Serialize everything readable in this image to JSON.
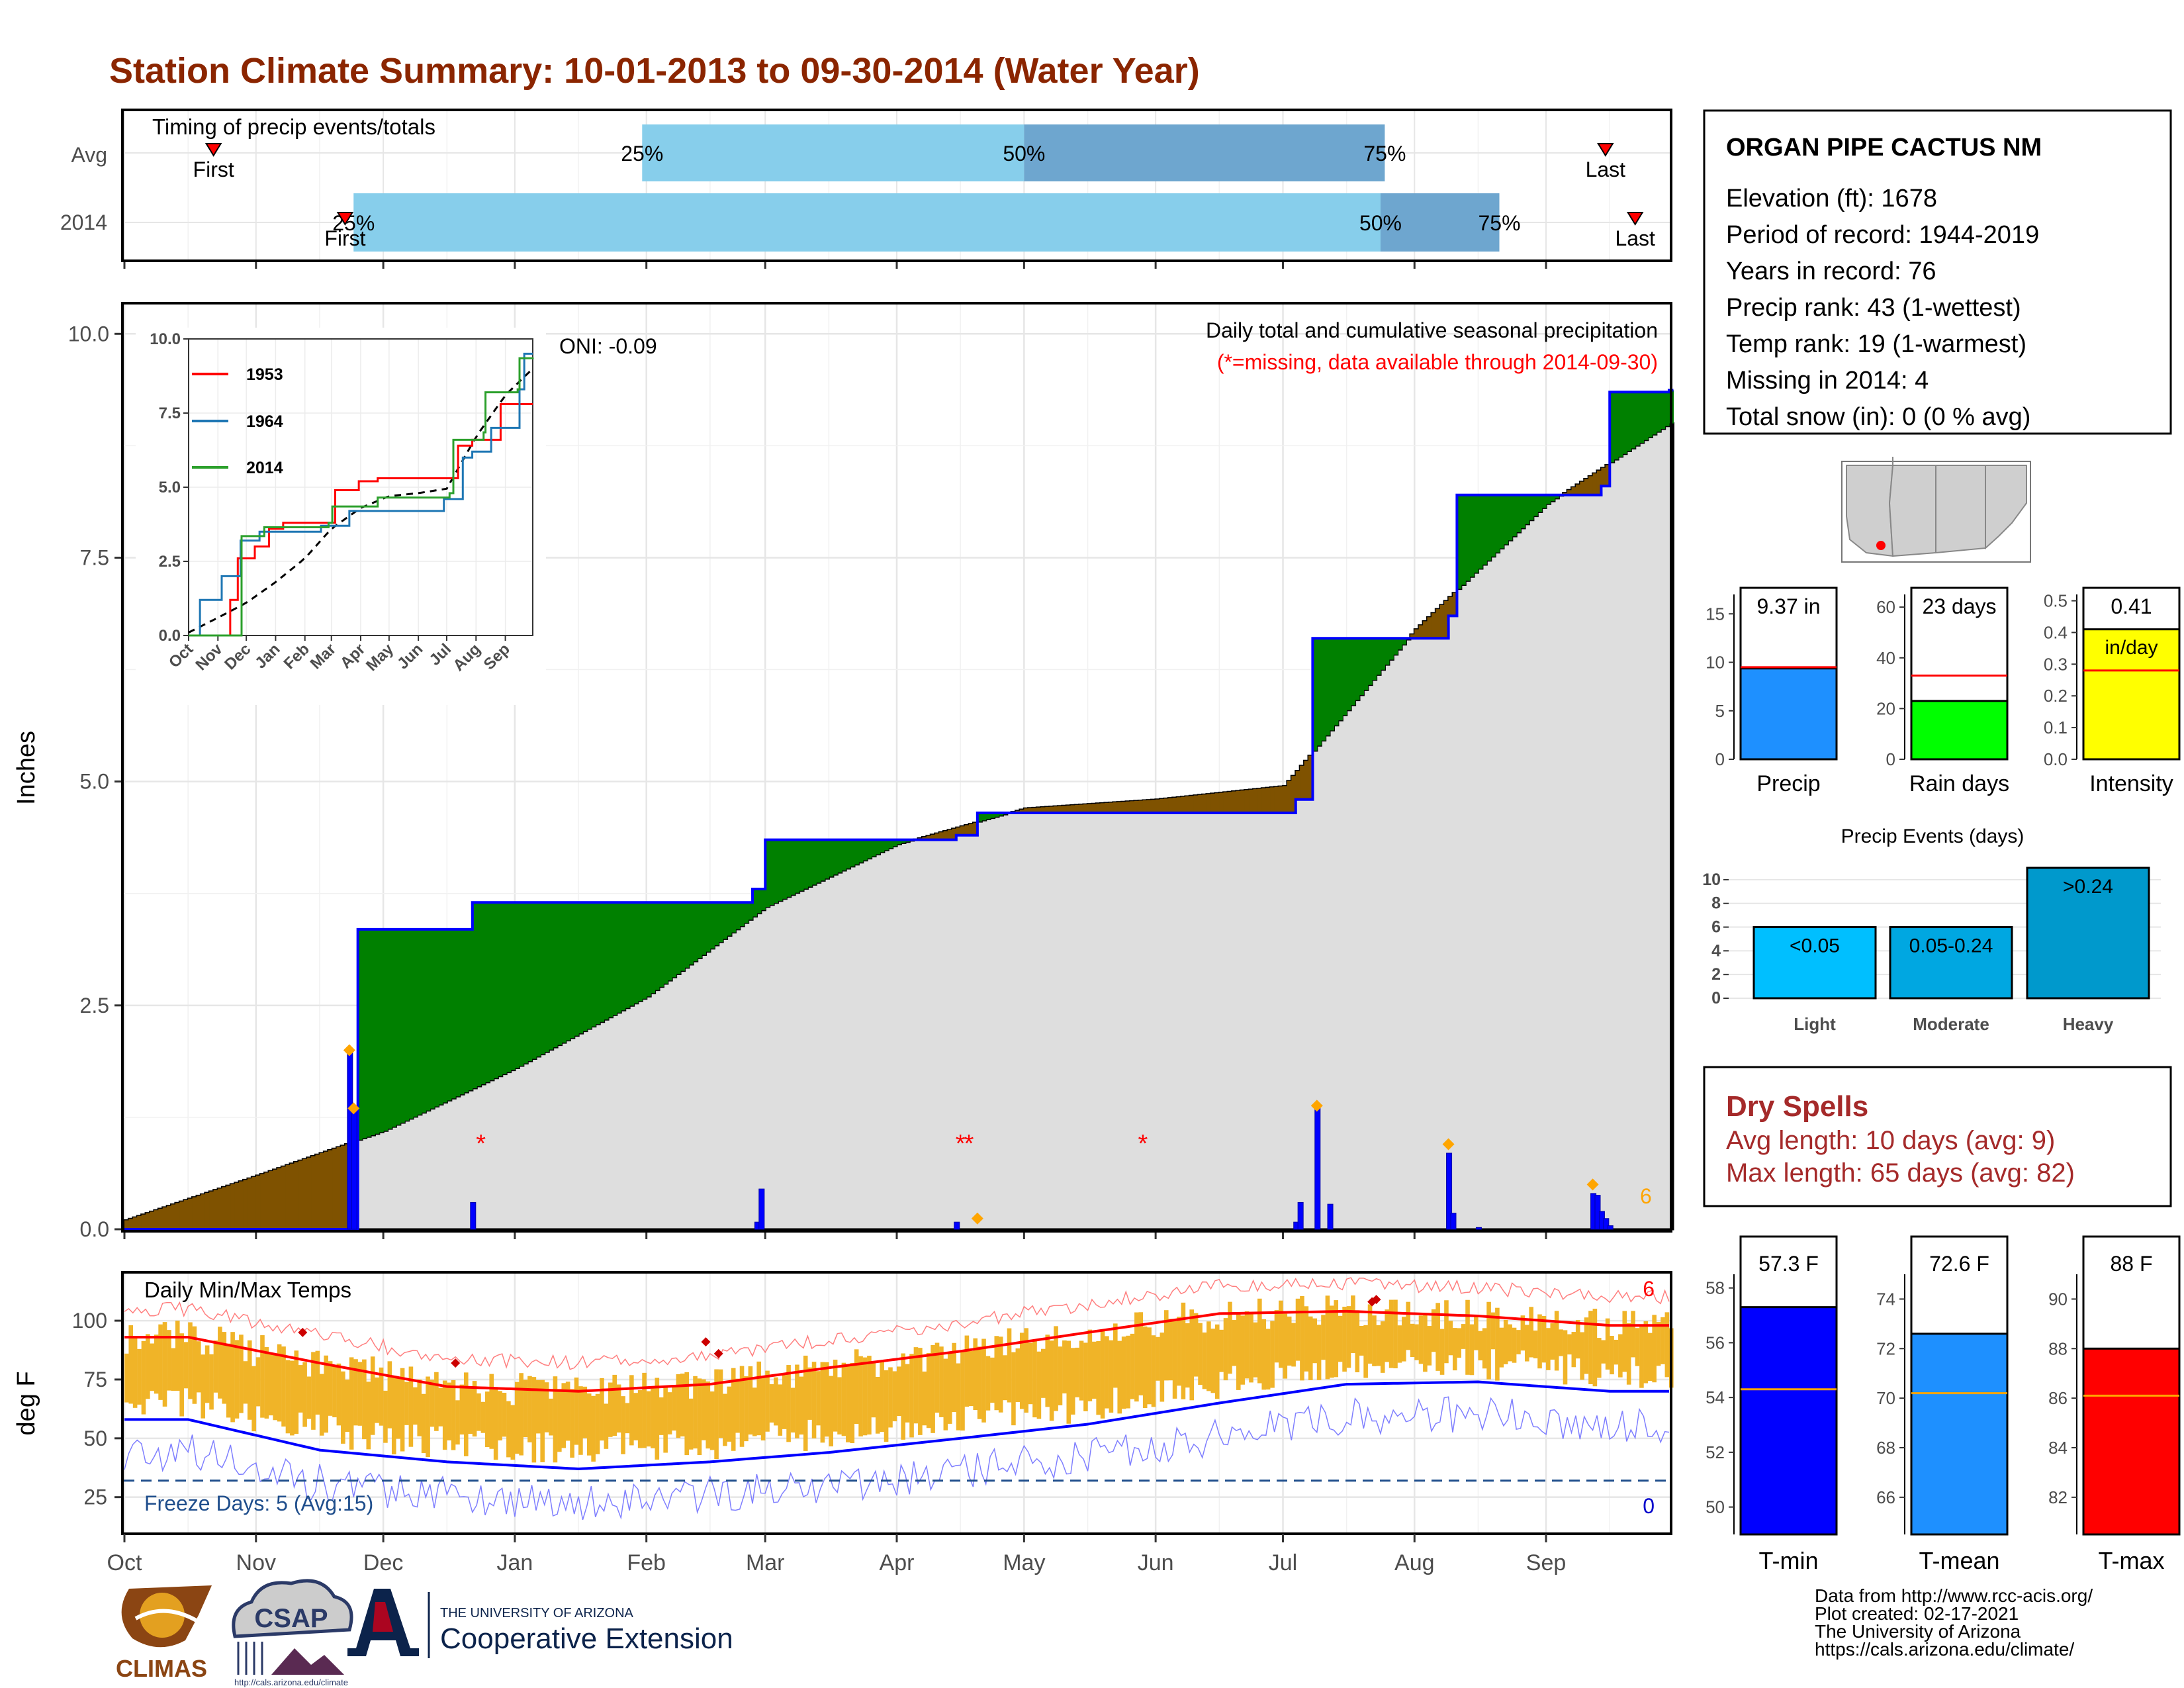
{
  "title": "Station Climate Summary: 10-01-2013 to 09-30-2014 (Water Year)",
  "colors": {
    "title": "#8b2500",
    "cum_fill": "#dedede",
    "surplus": "#008000",
    "deficit": "#7f5200",
    "precip_line": "#0000ff",
    "temp_bar": "#f0b428",
    "tmax": "#ff0000",
    "tmin": "#0000ff"
  },
  "timing": {
    "label": "Timing of precip events/totals",
    "rows": [
      "Avg",
      "2014"
    ],
    "first_label": "First",
    "last_label": "Last",
    "pct_labels": [
      "25%",
      "50%",
      "75%"
    ]
  },
  "station": {
    "name": "ORGAN PIPE CACTUS NM",
    "lines": [
      "Elevation (ft): 1678",
      "Period of record: 1944-2019",
      "Years in record: 76",
      "Precip rank: 43 (1-wettest)",
      "Temp rank: 19 (1-warmest)",
      "Missing in 2014: 4",
      "Total snow (in): 0 (0 % avg)"
    ]
  },
  "main": {
    "ylabel": "Inches",
    "heading": "Daily total and cumulative seasonal precipitation",
    "missing_note": "(*=missing, data available through 2014-09-30)",
    "oni": "ONI: -0.09",
    "extreme_count": "6",
    "yticks": [
      "0.0",
      "2.5",
      "5.0",
      "7.5",
      "10.0"
    ]
  },
  "inset": {
    "yticks": [
      "0.0",
      "2.5",
      "5.0",
      "7.5",
      "10.0"
    ],
    "xticks": [
      "Oct",
      "Nov",
      "Dec",
      "Jan",
      "Feb",
      "Mar",
      "Apr",
      "May",
      "Jun",
      "Jul",
      "Aug",
      "Sep"
    ]
  },
  "temp": {
    "label": "Daily Min/Max Temps",
    "ylabel": "deg F",
    "freeze": "Freeze Days: 5 (Avg:15)",
    "yticks": [
      "25",
      "50",
      "75",
      "100"
    ],
    "count_hot": "6",
    "count_cold": "0"
  },
  "months": [
    "Oct",
    "Nov",
    "Dec",
    "Jan",
    "Feb",
    "Mar",
    "Apr",
    "May",
    "Jun",
    "Jul",
    "Aug",
    "Sep"
  ],
  "mini_bars": [
    {
      "value_label": "9.37 in",
      "name": "Precip",
      "ticks": [
        "0",
        "5",
        "10",
        "15"
      ]
    },
    {
      "value_label": "23 days",
      "name": "Rain days",
      "ticks": [
        "0",
        "20",
        "40",
        "60"
      ]
    },
    {
      "value_label": "0.41",
      "unit": "in/day",
      "name": "Intensity",
      "ticks": [
        "0.0",
        "0.1",
        "0.2",
        "0.3",
        "0.4",
        "0.5"
      ]
    }
  ],
  "events": {
    "title": "Precip Events (days)",
    "ticks": [
      "0",
      "2",
      "4",
      "6",
      "8",
      "10"
    ]
  },
  "dry_spells": {
    "title": "Dry Spells",
    "avg": "Avg length: 10 days (avg: 9)",
    "max": "Max length: 65 days (avg: 82)"
  },
  "temp_bars": [
    {
      "value_label": "57.3 F",
      "name": "T-min",
      "ticks": [
        "50",
        "52",
        "54",
        "56",
        "58"
      ]
    },
    {
      "value_label": "72.6 F",
      "name": "T-mean",
      "ticks": [
        "66",
        "68",
        "70",
        "72",
        "74"
      ]
    },
    {
      "value_label": "88 F",
      "name": "T-max",
      "ticks": [
        "82",
        "84",
        "86",
        "88",
        "90"
      ]
    }
  ],
  "footer": [
    "Data from http://www.rcc-acis.org/",
    "Plot created: 02-17-2021",
    "The University of Arizona",
    "https://cals.arizona.edu/climate/"
  ],
  "logos": {
    "climas": "CLIMAS",
    "csap": "CSAP",
    "csap_url": "http://cals.arizona.edu/climate",
    "ua_small": "THE UNIVERSITY OF ARIZONA",
    "ua_big": "Cooperative Extension"
  },
  "chart_data": [
    {
      "type": "bar",
      "title": "Timing of precip events/totals",
      "categories": [
        "Avg",
        "2014"
      ],
      "series": [
        {
          "name": "Avg",
          "values": {
            "first": "2013-10-22",
            "p25": "2014-01-31",
            "p50": "2014-05-01",
            "p75": "2014-07-25",
            "last": "2014-09-15"
          }
        },
        {
          "name": "2014",
          "values": {
            "first": "2013-11-22",
            "p25": "2013-11-24",
            "p50": "2014-07-24",
            "p75": "2014-08-21",
            "last": "2014-09-22"
          }
        }
      ]
    },
    {
      "type": "area",
      "title": "Daily total and cumulative seasonal precipitation",
      "ylabel": "Inches",
      "ylim": [
        0,
        10
      ],
      "series": [
        {
          "name": "2014",
          "x": [
            "2013-10-01",
            "2013-11-24",
            "2013-11-25",
            "2013-12-22",
            "2014-02-26",
            "2014-03-01",
            "2014-04-15",
            "2014-04-20",
            "2014-07-04",
            "2014-07-08",
            "2014-08-09",
            "2014-08-11",
            "2014-09-14",
            "2014-09-16",
            "2014-09-30"
          ],
          "values": [
            0,
            0,
            3.35,
            3.65,
            3.8,
            4.35,
            4.4,
            4.65,
            4.8,
            6.6,
            6.85,
            8.2,
            8.3,
            9.35,
            9.37
          ]
        },
        {
          "name": "Average",
          "x": [
            "2013-10-01",
            "2013-11-01",
            "2013-12-01",
            "2014-01-01",
            "2014-02-01",
            "2014-03-01",
            "2014-04-01",
            "2014-05-01",
            "2014-06-01",
            "2014-07-01",
            "2014-08-01",
            "2014-09-01",
            "2014-09-30"
          ],
          "values": [
            0.1,
            0.6,
            1.1,
            1.8,
            2.6,
            3.6,
            4.3,
            4.7,
            4.8,
            4.95,
            6.7,
            8.1,
            9.0
          ]
        }
      ],
      "daily": {
        "x": [
          "2013-11-23",
          "2013-11-24",
          "2013-12-22",
          "2014-02-27",
          "2014-02-28",
          "2014-04-15",
          "2014-07-04",
          "2014-07-05",
          "2014-07-09",
          "2014-07-12",
          "2014-08-09",
          "2014-08-10",
          "2014-08-16",
          "2014-09-12",
          "2014-09-13",
          "2014-09-14",
          "2014-09-15",
          "2014-09-16"
        ],
        "values": [
          2.0,
          1.35,
          0.3,
          0.08,
          0.45,
          0.08,
          0.08,
          0.3,
          1.35,
          0.28,
          0.85,
          0.18,
          0.02,
          0.4,
          0.38,
          0.2,
          0.12,
          0.04
        ]
      },
      "missing": [
        "2013-12-24",
        "2014-04-16",
        "2014-04-18",
        "2014-05-29"
      ]
    },
    {
      "type": "line",
      "title": "Daily Min/Max Temps",
      "ylabel": "deg F",
      "ylim": [
        10,
        120
      ],
      "series": [
        {
          "name": "Avg max",
          "x": [
            "Oct",
            "Nov",
            "Dec",
            "Jan",
            "Feb",
            "Mar",
            "Apr",
            "May",
            "Jun",
            "Jul",
            "Aug",
            "Sep"
          ],
          "values": [
            93,
            82,
            72,
            70,
            73,
            80,
            87,
            95,
            103,
            104,
            102,
            98
          ]
        },
        {
          "name": "Avg min",
          "x": [
            "Oct",
            "Nov",
            "Dec",
            "Jan",
            "Feb",
            "Mar",
            "Apr",
            "May",
            "Jun",
            "Jul",
            "Aug",
            "Sep"
          ],
          "values": [
            58,
            45,
            40,
            37,
            40,
            44,
            50,
            56,
            65,
            73,
            74,
            70
          ]
        }
      ],
      "freeze_line": 32
    },
    {
      "type": "bar",
      "categories": [
        "Precip",
        "Rain days",
        "Intensity"
      ],
      "series": [
        {
          "name": "2014",
          "values": [
            9.37,
            23,
            0.41
          ]
        },
        {
          "name": "avg",
          "values": [
            9.5,
            33,
            0.28
          ]
        }
      ]
    },
    {
      "type": "bar",
      "title": "Precip Events (days)",
      "categories": [
        "Light",
        "Moderate",
        "Heavy"
      ],
      "series": [
        {
          "name": "range",
          "values": [
            6,
            6,
            11
          ],
          "labels": [
            "<0.05",
            "0.05-0.24",
            ">0.24"
          ]
        }
      ],
      "ylim": [
        0,
        11
      ]
    },
    {
      "type": "bar",
      "categories": [
        "T-min",
        "T-mean",
        "T-max"
      ],
      "series": [
        {
          "name": "2014",
          "values": [
            57.3,
            72.6,
            88
          ]
        },
        {
          "name": "avg",
          "values": [
            54.3,
            70.2,
            86.1
          ]
        }
      ]
    }
  ]
}
